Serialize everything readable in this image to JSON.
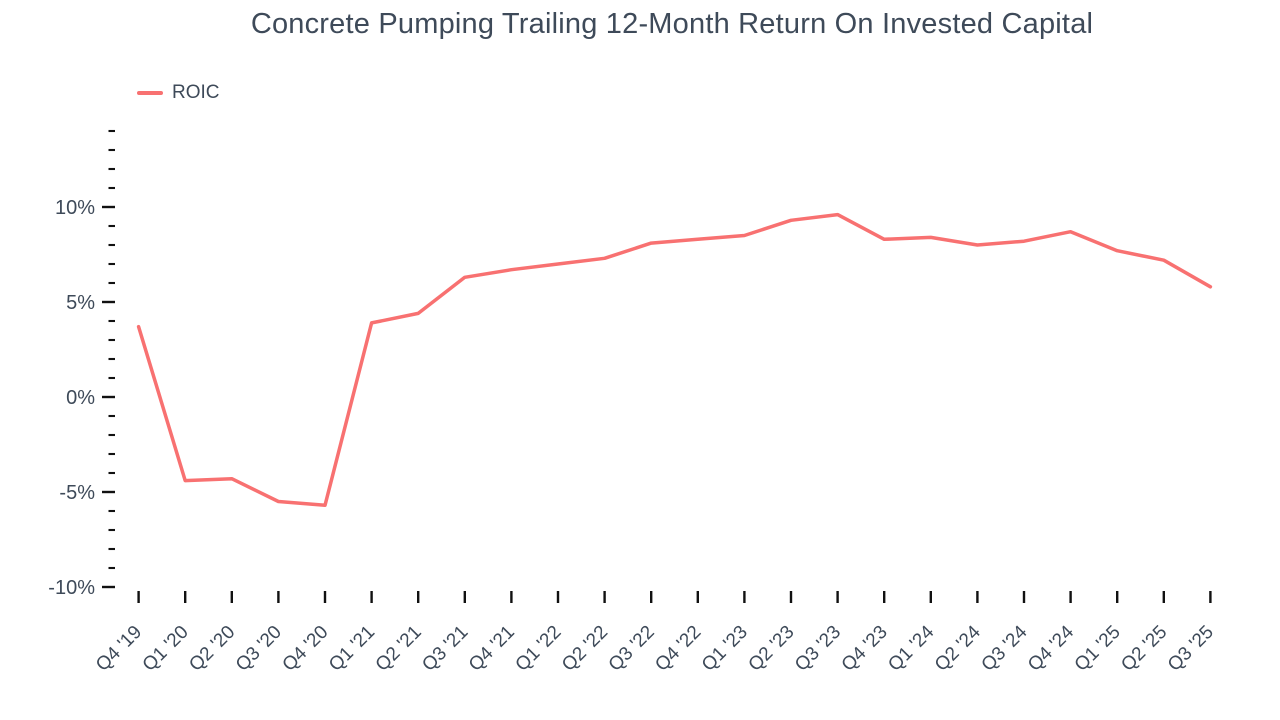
{
  "title": "Concrete Pumping Trailing 12-Month Return On Invested Capital",
  "legend": {
    "items": [
      {
        "label": "ROIC",
        "color": "#f87171"
      }
    ]
  },
  "colors": {
    "series": "#f87171",
    "text": "#3e4a59",
    "tick": "#111111",
    "background": "#ffffff"
  },
  "chart_data": {
    "type": "line",
    "title": "Concrete Pumping Trailing 12-Month Return On Invested Capital",
    "xlabel": "",
    "ylabel": "",
    "unit": "%",
    "grid": false,
    "legend_position": "top-left",
    "categories": [
      "Q4 '19",
      "Q1 '20",
      "Q2 '20",
      "Q3 '20",
      "Q4 '20",
      "Q1 '21",
      "Q2 '21",
      "Q3 '21",
      "Q4 '21",
      "Q1 '22",
      "Q2 '22",
      "Q3 '22",
      "Q4 '22",
      "Q1 '23",
      "Q2 '23",
      "Q3 '23",
      "Q4 '23",
      "Q1 '24",
      "Q2 '24",
      "Q3 '24",
      "Q4 '24",
      "Q1 '25",
      "Q2 '25",
      "Q3 '25"
    ],
    "series": [
      {
        "name": "ROIC",
        "color": "#f87171",
        "values": [
          3.7,
          -4.4,
          -4.3,
          -5.5,
          -5.7,
          3.9,
          4.4,
          6.3,
          6.7,
          7.0,
          7.3,
          8.1,
          8.3,
          8.5,
          9.3,
          9.6,
          8.3,
          8.4,
          8.0,
          8.2,
          8.7,
          7.7,
          7.2,
          5.8
        ]
      }
    ],
    "ylim": [
      -10,
      14
    ],
    "y_minor_step": 1,
    "y_major_step": 5,
    "yticks": [
      {
        "value": 10,
        "label": "10%"
      },
      {
        "value": 5,
        "label": "5%"
      },
      {
        "value": 0,
        "label": "0%"
      },
      {
        "value": -5,
        "label": "-5%"
      },
      {
        "value": -10,
        "label": "-10%"
      }
    ]
  }
}
